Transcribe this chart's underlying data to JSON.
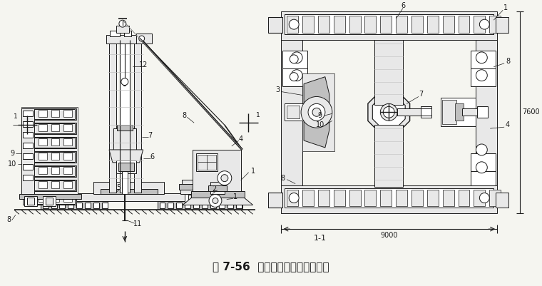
{
  "title": "图 7-56  全液压式静力压桩机压桩",
  "title_fontsize": 11,
  "bg_color": "#f5f5f0",
  "fig_width": 7.6,
  "fig_height": 4.01,
  "section_label": "1-1",
  "dim_9000": "9000",
  "dim_7600": "7600",
  "white": "#ffffff",
  "black": "#1a1a1a",
  "light_gray": "#e8e8e8",
  "med_gray": "#c0c0c0",
  "dark_gray": "#888888"
}
